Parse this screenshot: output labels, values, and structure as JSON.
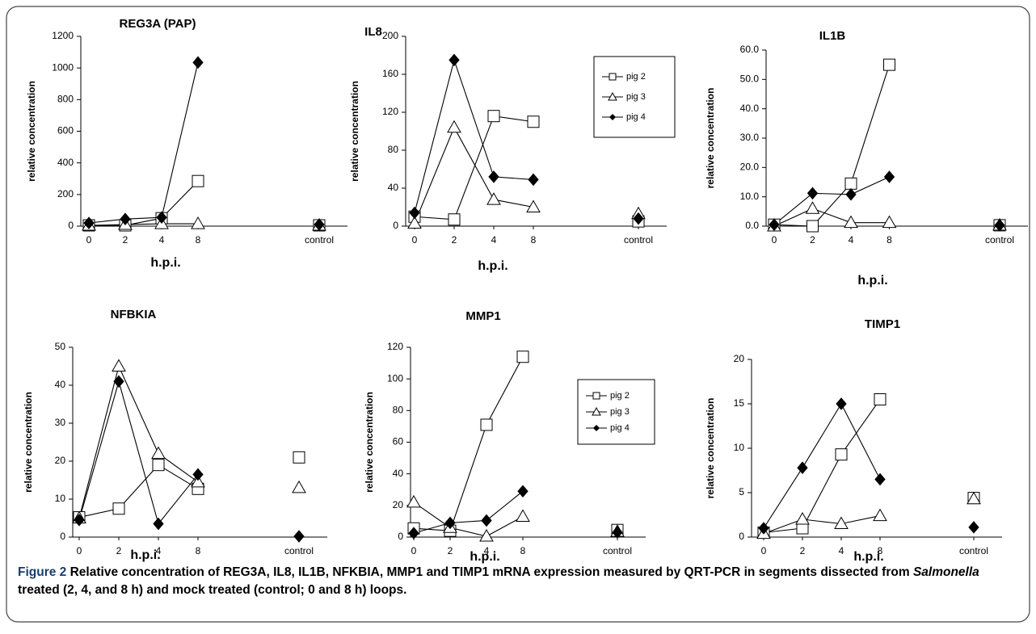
{
  "chart_data": [
    {
      "type": "line",
      "title": "REG3A (PAP)",
      "xlabel": "h.p.i.",
      "ylabel": "relative concentration",
      "categories": [
        "0",
        "2",
        "4",
        "8",
        "control"
      ],
      "ylim": [
        0,
        1200
      ],
      "yticks": [
        0,
        200,
        400,
        600,
        800,
        1000,
        1200
      ],
      "series": [
        {
          "name": "pig 2",
          "color": "#000000",
          "marker": "square",
          "values": [
            5,
            5,
            50,
            285,
            5
          ]
        },
        {
          "name": "pig 3",
          "color": "#000000",
          "marker": "triangle",
          "values": [
            5,
            10,
            15,
            15,
            5
          ]
        },
        {
          "name": "pig 4",
          "color": "#000000",
          "marker": "diamond",
          "values": [
            20,
            45,
            55,
            1035,
            10
          ]
        }
      ]
    },
    {
      "type": "line",
      "title": "IL8",
      "xlabel": "h.p.i.",
      "ylabel": "relative concentration",
      "legend": "upper right",
      "categories": [
        "0",
        "2",
        "4",
        "8",
        "control"
      ],
      "ylim": [
        0,
        200
      ],
      "yticks": [
        0,
        40,
        80,
        120,
        160,
        200
      ],
      "series": [
        {
          "name": "pig 2",
          "color": "#000000",
          "marker": "square",
          "values": [
            10,
            7,
            116,
            110,
            5
          ]
        },
        {
          "name": "pig 3",
          "color": "#000000",
          "marker": "triangle",
          "values": [
            3,
            104,
            28,
            20,
            13
          ]
        },
        {
          "name": "pig 4",
          "color": "#000000",
          "marker": "diamond",
          "values": [
            14,
            175,
            52,
            49,
            8
          ]
        }
      ]
    },
    {
      "type": "line",
      "title": "IL1B",
      "xlabel": "h.p.i.",
      "ylabel": "relative concentration",
      "categories": [
        "0",
        "2",
        "4",
        "8",
        "control"
      ],
      "ylim": [
        0,
        60
      ],
      "yticks": [
        {
          "value": 0,
          "label": "0.0"
        },
        {
          "value": 10,
          "label": "10.0"
        },
        {
          "value": 20,
          "label": "20.0"
        },
        {
          "value": 30,
          "label": "30.0"
        },
        {
          "value": 40,
          "label": "40.0"
        },
        {
          "value": 50,
          "label": "50.0"
        },
        {
          "value": 60,
          "label": "60.0"
        }
      ],
      "series": [
        {
          "name": "pig 2",
          "color": "#000000",
          "marker": "square",
          "values": [
            0.5,
            0,
            14.5,
            55,
            0.3
          ]
        },
        {
          "name": "pig 3",
          "color": "#000000",
          "marker": "triangle",
          "values": [
            0,
            6,
            1.2,
            1.2,
            0.3
          ]
        },
        {
          "name": "pig 4",
          "color": "#000000",
          "marker": "diamond",
          "values": [
            0.5,
            11.2,
            10.8,
            16.8,
            0.3
          ]
        }
      ]
    },
    {
      "type": "line",
      "title": "NFBKIA",
      "xlabel": "h.p.i.",
      "ylabel": "relative concentration",
      "categories": [
        "0",
        "2",
        "4",
        "8",
        "control"
      ],
      "ylim": [
        0,
        50
      ],
      "yticks": [
        0,
        10,
        20,
        30,
        40,
        50
      ],
      "series": [
        {
          "name": "pig 2",
          "color": "#000000",
          "marker": "square",
          "values": [
            5.2,
            7.5,
            19,
            12.7,
            21
          ]
        },
        {
          "name": "pig 3",
          "color": "#000000",
          "marker": "triangle",
          "values": [
            5,
            45,
            22,
            14.5,
            13
          ]
        },
        {
          "name": "pig 4",
          "color": "#000000",
          "marker": "diamond",
          "values": [
            4.5,
            41,
            3.5,
            16.5,
            0.2
          ]
        }
      ]
    },
    {
      "type": "line",
      "title": "MMP1",
      "xlabel": "h.p.i.",
      "ylabel": "relative concentration",
      "legend": "upper right",
      "categories": [
        "0",
        "2",
        "4",
        "8",
        "control"
      ],
      "ylim": [
        0,
        120
      ],
      "yticks": [
        0,
        20,
        40,
        60,
        80,
        100,
        120
      ],
      "series": [
        {
          "name": "pig 2",
          "color": "#000000",
          "marker": "square",
          "values": [
            5.5,
            4,
            71,
            114,
            4.5
          ]
        },
        {
          "name": "pig 3",
          "color": "#000000",
          "marker": "triangle",
          "values": [
            22,
            6,
            0.5,
            13,
            3.5
          ]
        },
        {
          "name": "pig 4",
          "color": "#000000",
          "marker": "diamond",
          "values": [
            2.5,
            9,
            10.5,
            29,
            3
          ]
        }
      ]
    },
    {
      "type": "line",
      "title": "TIMP1",
      "xlabel": "h.p.i.",
      "ylabel": "relative concentration",
      "categories": [
        "0",
        "2",
        "4",
        "8",
        "control"
      ],
      "ylim": [
        0,
        20
      ],
      "yticks": [
        0,
        5,
        10,
        15,
        20
      ],
      "series": [
        {
          "name": "pig 2",
          "color": "#000000",
          "marker": "square",
          "values": [
            0.5,
            1,
            9.3,
            15.5,
            4.4
          ]
        },
        {
          "name": "pig 3",
          "color": "#000000",
          "marker": "triangle",
          "values": [
            0.4,
            2,
            1.5,
            2.4,
            4.3
          ]
        },
        {
          "name": "pig 4",
          "color": "#000000",
          "marker": "diamond",
          "values": [
            1,
            7.8,
            15,
            6.5,
            1.1
          ]
        }
      ]
    }
  ],
  "caption": {
    "label": "Figure 2",
    "text1": "Relative concentration of REG3A, IL8, IL1B, NFKBIA, MMP1 and TIMP1 mRNA expression measured by QRT-PCR in segments dissected from",
    "italic": "Salmonella",
    "text2": "treated (2, 4, and 8 h) and mock treated (control; 0 and 8 h) loops."
  }
}
